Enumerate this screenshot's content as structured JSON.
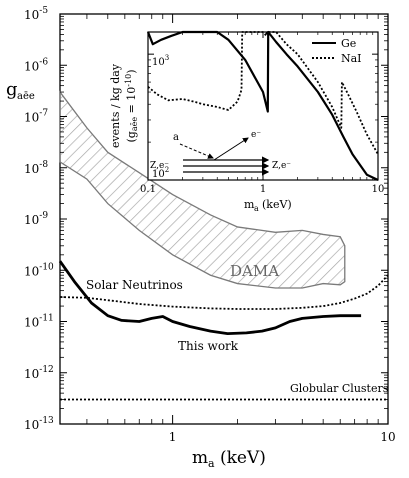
{
  "chart_data": [
    {
      "type": "line",
      "title": "",
      "xlabel": "m_a (keV)",
      "ylabel": "g_aēe",
      "x_scale": "log",
      "y_scale": "log",
      "xlim": [
        0.3,
        10
      ],
      "ylim": [
        1e-13,
        1e-05
      ],
      "x_ticks": [
        {
          "value": 1,
          "label": "1"
        },
        {
          "value": 10,
          "label": "10"
        }
      ],
      "y_ticks": [
        {
          "value": 1e-13,
          "mant": "10",
          "exp": "-13"
        },
        {
          "value": 1e-12,
          "mant": "10",
          "exp": "-12"
        },
        {
          "value": 1e-11,
          "mant": "10",
          "exp": "-11"
        },
        {
          "value": 1e-10,
          "mant": "10",
          "exp": "-10"
        },
        {
          "value": 1e-09,
          "mant": "10",
          "exp": "-9"
        },
        {
          "value": 1e-08,
          "mant": "10",
          "exp": "-8"
        },
        {
          "value": 1e-07,
          "mant": "10",
          "exp": "-7"
        },
        {
          "value": 1e-06,
          "mant": "10",
          "exp": "-6"
        },
        {
          "value": 1e-05,
          "mant": "10",
          "exp": "-5"
        }
      ],
      "series": [
        {
          "name": "This work",
          "style": "solid-thick",
          "x": [
            0.3,
            0.35,
            0.42,
            0.5,
            0.58,
            0.7,
            0.8,
            0.9,
            1.0,
            1.2,
            1.5,
            1.8,
            2.2,
            2.6,
            3.0,
            3.5,
            4.0,
            5.0,
            6.0,
            7.5
          ],
          "y": [
            1.5e-10,
            6e-11,
            2.3e-11,
            1.3e-11,
            1.05e-11,
            1e-11,
            1.15e-11,
            1.25e-11,
            1e-11,
            8e-12,
            6.5e-12,
            5.8e-12,
            6e-12,
            6.5e-12,
            7.5e-12,
            1e-11,
            1.15e-11,
            1.25e-11,
            1.3e-11,
            1.3e-11
          ]
        },
        {
          "name": "Solar Neutrinos",
          "style": "dotted",
          "x": [
            0.3,
            0.4,
            0.5,
            0.7,
            1.0,
            1.5,
            2.0,
            3.0,
            4.0,
            5.0,
            6.0,
            7.0,
            8.0,
            9.0,
            10.0
          ],
          "y": [
            3e-11,
            2.9e-11,
            2.6e-11,
            2.2e-11,
            1.95e-11,
            1.8e-11,
            1.75e-11,
            1.75e-11,
            1.85e-11,
            2e-11,
            2.3e-11,
            2.8e-11,
            3.5e-11,
            5e-11,
            8e-11
          ]
        },
        {
          "name": "Globular Clusters",
          "style": "dotted",
          "x": [
            0.3,
            10.0
          ],
          "y": [
            3e-13,
            3e-13
          ]
        }
      ],
      "region": {
        "name": "DAMA",
        "style": "hatched",
        "upper_x": [
          0.3,
          0.4,
          0.5,
          0.7,
          1.0,
          1.5,
          2.0,
          3.0,
          4.0,
          5.0,
          6.0,
          6.3
        ],
        "upper_y": [
          3e-07,
          6e-08,
          2e-08,
          8e-09,
          3e-09,
          1.2e-09,
          7e-10,
          5.5e-10,
          6e-10,
          5e-10,
          4.5e-10,
          3e-10
        ],
        "lower_x": [
          6.3,
          6.0,
          5.0,
          4.0,
          3.0,
          2.0,
          1.5,
          1.0,
          0.7,
          0.5,
          0.4,
          0.3
        ],
        "lower_y": [
          6e-11,
          5.2e-11,
          5.5e-11,
          4.5e-11,
          4.5e-11,
          5.5e-11,
          8e-11,
          2e-10,
          6e-10,
          2e-09,
          6e-09,
          1.3e-08
        ]
      },
      "annotations": [
        "DAMA",
        "Solar Neutrinos",
        "This work",
        "Globular Clusters"
      ]
    },
    {
      "type": "line",
      "title": "",
      "xlabel": "m_a (keV)",
      "ylabel": "events / kg day (g_aēe = 10^-10)",
      "x_scale": "log",
      "y_scale": "log",
      "xlim": [
        0.1,
        10
      ],
      "ylim": [
        100,
        1500
      ],
      "x_ticks": [
        {
          "value": 0.1,
          "label": "0.1"
        },
        {
          "value": 1,
          "label": "1"
        },
        {
          "value": 10,
          "label": "10"
        }
      ],
      "y_ticks": [
        {
          "value": 100,
          "mant": "10",
          "exp": "2"
        },
        {
          "value": 1000,
          "mant": "10",
          "exp": "3"
        }
      ],
      "legend_position": "top-right",
      "series": [
        {
          "name": "Ge",
          "style": "solid",
          "x": [
            0.1,
            0.11,
            0.13,
            0.16,
            0.2,
            0.22,
            0.3,
            0.4,
            0.5,
            0.7,
            1.0,
            1.1,
            1.11,
            1.3,
            1.6,
            2.0,
            3.0,
            4.0,
            5.0,
            6.0,
            8.0,
            10.0
          ],
          "y": [
            1500,
            1200,
            1300,
            1400,
            1500,
            1500,
            1600,
            1500,
            1300,
            900,
            500,
            350,
            1500,
            1250,
            1000,
            800,
            500,
            330,
            220,
            160,
            110,
            85
          ]
        },
        {
          "name": "NaI",
          "style": "dotted",
          "x": [
            0.1,
            0.12,
            0.15,
            0.2,
            0.25,
            0.3,
            0.4,
            0.5,
            0.6,
            0.65,
            0.66,
            0.8,
            1.0,
            1.07,
            1.08,
            1.3,
            1.6,
            2.0,
            3.0,
            4.0,
            4.8,
            4.85,
            5.5,
            6.5,
            8.0,
            10.0
          ],
          "y": [
            550,
            480,
            430,
            440,
            420,
            400,
            380,
            360,
            420,
            520,
            1900,
            1700,
            1500,
            1400,
            1900,
            1500,
            1200,
            1000,
            600,
            380,
            260,
            600,
            480,
            350,
            230,
            160
          ]
        }
      ],
      "diagram_labels": {
        "a": "a",
        "e_minus": "e⁻",
        "z_left": "Z,e⁻",
        "z_right": "Z,e⁻"
      }
    }
  ]
}
